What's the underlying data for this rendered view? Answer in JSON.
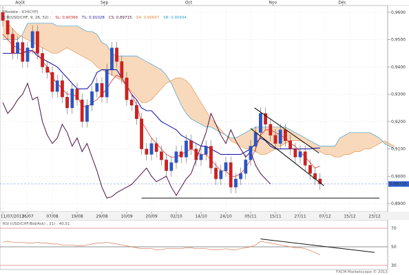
{
  "header": {
    "model_label": "[Modèle : ICHICYP]",
    "legend": [
      {
        "text": "ICH(USD/CHF, 9, 26, 52) :",
        "color": "#444444"
      },
      {
        "text": "SL: 0,90366",
        "color": "#cc2222"
      },
      {
        "text": "TL: 0,91028",
        "color": "#1a1aaa"
      },
      {
        "text": "CS: 0,89715",
        "color": "#4a1040"
      },
      {
        "text": "SA: 0,90697",
        "color": "#e08a40"
      },
      {
        "text": "SB: 0,90694",
        "color": "#3aa0d0"
      }
    ]
  },
  "top_axis": {
    "months": [
      "Août",
      "Sep",
      "Oct",
      "Nov",
      "Déc"
    ],
    "month_positions_index": [
      3.5,
      20.5,
      37.5,
      54.5,
      68.5
    ]
  },
  "chart_data": [
    {
      "type": "candlestick",
      "instrument": "USD/CHF",
      "ylim": [
        0.8875,
        0.962
      ],
      "yticks": [
        0.89,
        0.9,
        0.91,
        0.92,
        0.93,
        0.94,
        0.95,
        0.96
      ],
      "ytick_labels": [
        "0,8900",
        "0,9000",
        "0,9100",
        "0,9200",
        "0,9300",
        "0,9400",
        "0,9500",
        "0,9600"
      ],
      "current_price": 0.89715,
      "current_price_label": "0,89715",
      "xtick_labels": [
        "11/07/2013",
        "26/07",
        "07/08",
        "19/08",
        "29/08",
        "10/09",
        "20/09",
        "02/10",
        "14/10",
        "24/10",
        "05/11",
        "15/11",
        "27/11",
        "07/12",
        "15/12",
        "23/12"
      ],
      "xtick_index": [
        0,
        5,
        10,
        15,
        20,
        25,
        30,
        35,
        40,
        45,
        50,
        55,
        60,
        65,
        70,
        75
      ],
      "close": [
        0.957,
        0.952,
        0.945,
        0.949,
        0.942,
        0.947,
        0.953,
        0.945,
        0.94,
        0.938,
        0.931,
        0.935,
        0.929,
        0.925,
        0.932,
        0.928,
        0.92,
        0.926,
        0.931,
        0.934,
        0.929,
        0.939,
        0.947,
        0.942,
        0.936,
        0.928,
        0.926,
        0.921,
        0.91,
        0.908,
        0.912,
        0.909,
        0.906,
        0.902,
        0.905,
        0.909,
        0.907,
        0.913,
        0.91,
        0.906,
        0.908,
        0.911,
        0.903,
        0.899,
        0.902,
        0.905,
        0.896,
        0.899,
        0.901,
        0.906,
        0.911,
        0.916,
        0.923,
        0.919,
        0.915,
        0.912,
        0.917,
        0.913,
        0.91,
        0.907,
        0.909,
        0.904,
        0.901,
        0.899,
        0.8972
      ],
      "tenkan": [
        0.952,
        0.95,
        0.948,
        0.947,
        0.946,
        0.945,
        0.946,
        0.945,
        0.942,
        0.94,
        0.936,
        0.934,
        0.932,
        0.93,
        0.93,
        0.929,
        0.926,
        0.925,
        0.927,
        0.928,
        0.93,
        0.932,
        0.935,
        0.937,
        0.936,
        0.933,
        0.93,
        0.926,
        0.92,
        0.917,
        0.914,
        0.912,
        0.91,
        0.908,
        0.907,
        0.907,
        0.908,
        0.909,
        0.91,
        0.909,
        0.908,
        0.908,
        0.906,
        0.904,
        0.902,
        0.902,
        0.9,
        0.9,
        0.901,
        0.903,
        0.906,
        0.91,
        0.915,
        0.917,
        0.917,
        0.916,
        0.915,
        0.914,
        0.912,
        0.911,
        0.909,
        0.907,
        0.905,
        0.903,
        0.9037
      ],
      "kijun": [
        0.945,
        0.945,
        0.945,
        0.945,
        0.945,
        0.946,
        0.946,
        0.944,
        0.943,
        0.942,
        0.941,
        0.94,
        0.938,
        0.936,
        0.934,
        0.932,
        0.932,
        0.932,
        0.934,
        0.938,
        0.939,
        0.939,
        0.939,
        0.939,
        0.936,
        0.933,
        0.93,
        0.928,
        0.925,
        0.924,
        0.924,
        0.922,
        0.92,
        0.919,
        0.918,
        0.917,
        0.915,
        0.914,
        0.913,
        0.912,
        0.911,
        0.911,
        0.91,
        0.909,
        0.908,
        0.908,
        0.908,
        0.908,
        0.908,
        0.909,
        0.91,
        0.912,
        0.914,
        0.913,
        0.911,
        0.91,
        0.91,
        0.91,
        0.91,
        0.91,
        0.91,
        0.91,
        0.91,
        0.9103,
        0.9103
      ],
      "chikou": [
        0.927,
        0.923,
        0.925,
        0.928,
        0.93,
        0.934,
        0.928,
        0.929,
        0.92,
        0.915,
        0.912,
        0.914,
        0.919,
        0.916,
        0.911,
        0.914,
        0.909,
        0.912,
        0.907,
        0.902,
        0.896,
        0.892,
        0.8925,
        0.894,
        0.895,
        0.896,
        0.897,
        0.899,
        0.901,
        0.903,
        0.9,
        0.898,
        0.899,
        0.9,
        0.896,
        0.893,
        0.896,
        0.899,
        0.901,
        0.906,
        0.911,
        0.916,
        0.923,
        0.919,
        0.915,
        0.912,
        0.917,
        0.913,
        0.91,
        0.907,
        0.909,
        0.904,
        0.901,
        0.899,
        0.8972
      ],
      "chikou_start_index": 0,
      "senkou_a": [
        0.958,
        0.956,
        0.954,
        0.952,
        0.951,
        0.95,
        0.949,
        0.948,
        0.947,
        0.946,
        0.945,
        0.945,
        0.946,
        0.947,
        0.946,
        0.945,
        0.944,
        0.943,
        0.942,
        0.94,
        0.939,
        0.938,
        0.937,
        0.936,
        0.935,
        0.933,
        0.931,
        0.929,
        0.927,
        0.927,
        0.928,
        0.93,
        0.932,
        0.934,
        0.935,
        0.936,
        0.936,
        0.935,
        0.933,
        0.93,
        0.927,
        0.924,
        0.921,
        0.919,
        0.917,
        0.915,
        0.913,
        0.912,
        0.911,
        0.91,
        0.91,
        0.909,
        0.908,
        0.908,
        0.909,
        0.91,
        0.911,
        0.912,
        0.913,
        0.913,
        0.913,
        0.912,
        0.911,
        0.91,
        0.909,
        0.908,
        0.908,
        0.907,
        0.907,
        0.908,
        0.908,
        0.909,
        0.909,
        0.91,
        0.91,
        0.911,
        0.912,
        0.913,
        0.912,
        0.911
      ],
      "senkou_b": [
        0.95,
        0.95,
        0.95,
        0.95,
        0.952,
        0.956,
        0.956,
        0.956,
        0.956,
        0.956,
        0.956,
        0.955,
        0.955,
        0.955,
        0.955,
        0.955,
        0.954,
        0.953,
        0.953,
        0.952,
        0.949,
        0.948,
        0.945,
        0.944,
        0.944,
        0.944,
        0.944,
        0.944,
        0.943,
        0.942,
        0.941,
        0.94,
        0.939,
        0.937,
        0.934,
        0.93,
        0.926,
        0.923,
        0.921,
        0.92,
        0.919,
        0.918,
        0.918,
        0.917,
        0.916,
        0.915,
        0.914,
        0.914,
        0.915,
        0.916,
        0.917,
        0.918,
        0.918,
        0.918,
        0.918,
        0.918,
        0.918,
        0.918,
        0.917,
        0.916,
        0.915,
        0.914,
        0.913,
        0.912,
        0.911,
        0.911,
        0.911,
        0.911,
        0.914,
        0.915,
        0.916,
        0.916,
        0.916,
        0.916,
        0.916,
        0.915,
        0.914,
        0.912,
        0.911,
        0.91
      ],
      "trendlines": [
        {
          "x": [
            50.8,
            63.8
          ],
          "y": [
            0.925,
            0.9085
          ],
          "color": "#111111"
        },
        {
          "x": [
            50.0,
            64.8
          ],
          "y": [
            0.9175,
            0.8965
          ],
          "color": "#111111"
        },
        {
          "x": [
            28.0,
            76.0
          ],
          "y": [
            0.892,
            0.892
          ],
          "color": "#111111"
        }
      ],
      "bottom_right_brand": "FXCM Marketscope © 2013"
    },
    {
      "type": "line",
      "title": "RSI (USD/CHF/Bid/Ask) , 21) : 40,51",
      "ylim": [
        30,
        70
      ],
      "levels": [
        70,
        50,
        30
      ],
      "level_labels": [
        "70",
        "50",
        "30"
      ],
      "values": [
        55,
        56,
        55,
        55,
        55,
        54,
        54,
        55,
        54,
        54,
        53,
        53,
        52,
        52,
        52,
        51,
        51,
        52,
        53,
        54,
        54,
        55,
        54,
        53,
        52,
        51,
        50,
        49,
        48,
        48,
        48,
        47,
        47,
        48,
        48,
        48,
        48,
        49,
        49,
        48,
        48,
        48,
        47,
        47,
        47,
        48,
        47,
        47,
        48,
        49,
        50,
        52,
        56,
        55,
        54,
        53,
        52,
        51,
        50,
        49,
        49,
        48,
        46,
        44,
        41
      ],
      "trendline": {
        "x": [
          52.0,
          75.0
        ],
        "y": [
          58.5,
          44.0
        ]
      }
    }
  ]
}
